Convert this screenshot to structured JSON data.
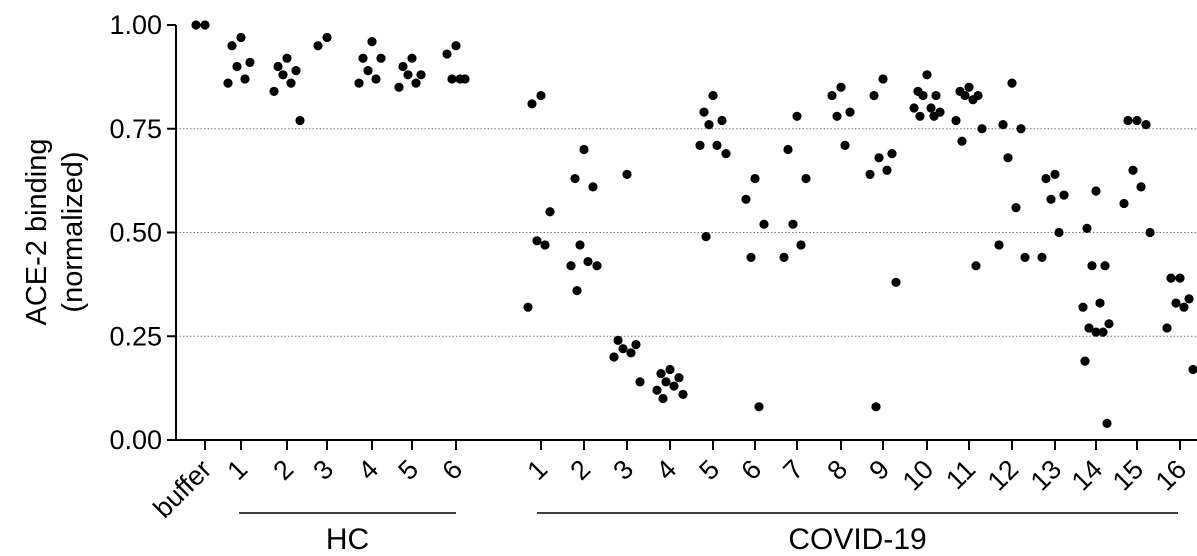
{
  "chart_data": {
    "type": "scatter",
    "ylabel_line1": "ACE-2 binding",
    "ylabel_line2": "(normalized)",
    "ylim": [
      0,
      1
    ],
    "yticks": [
      "0.00",
      "0.25",
      "0.50",
      "0.75",
      "1.00"
    ],
    "ytick_values": [
      0,
      0.25,
      0.5,
      0.75,
      1.0
    ],
    "grid_y_values": [
      0.25,
      0.5,
      0.75
    ],
    "grid": "dotted horizontal at 0.25, 0.50, 0.75",
    "groups": [
      {
        "label": "HC",
        "categories": [
          "1",
          "2",
          "3",
          "4",
          "5",
          "6"
        ]
      },
      {
        "label": "COVID-19",
        "categories": [
          "1",
          "2",
          "3",
          "4",
          "5",
          "6",
          "7",
          "8",
          "9",
          "10",
          "11",
          "12",
          "13",
          "14",
          "15",
          "16"
        ]
      }
    ],
    "categories": [
      "buffer",
      "1",
      "2",
      "3",
      "4",
      "5",
      "6",
      "1",
      "2",
      "3",
      "4",
      "5",
      "6",
      "7",
      "8",
      "9",
      "10",
      "11",
      "12",
      "13",
      "14",
      "15",
      "16"
    ],
    "series": [
      {
        "category": "buffer",
        "values": [
          1.0,
          1.0
        ]
      },
      {
        "category": "1",
        "group": "HC",
        "values": [
          0.97,
          0.95,
          0.91,
          0.9,
          0.87,
          0.86
        ]
      },
      {
        "category": "2",
        "group": "HC",
        "values": [
          0.92,
          0.9,
          0.89,
          0.88,
          0.86,
          0.84,
          0.77
        ]
      },
      {
        "category": "3",
        "group": "HC",
        "values": [
          0.97,
          0.95
        ]
      },
      {
        "category": "4",
        "group": "HC",
        "values": [
          0.96,
          0.92,
          0.92,
          0.89,
          0.87,
          0.86
        ]
      },
      {
        "category": "5",
        "group": "HC",
        "values": [
          0.92,
          0.9,
          0.88,
          0.88,
          0.86,
          0.85
        ]
      },
      {
        "category": "6",
        "group": "HC",
        "values": [
          0.95,
          0.93,
          0.87,
          0.87,
          0.87
        ]
      },
      {
        "category": "1",
        "group": "COVID-19",
        "values": [
          0.83,
          0.81,
          0.55,
          0.48,
          0.47,
          0.32
        ]
      },
      {
        "category": "2",
        "group": "COVID-19",
        "values": [
          0.7,
          0.63,
          0.61,
          0.47,
          0.43,
          0.42,
          0.42,
          0.36
        ]
      },
      {
        "category": "3",
        "group": "COVID-19",
        "values": [
          0.64,
          0.24,
          0.23,
          0.22,
          0.21,
          0.2,
          0.14
        ]
      },
      {
        "category": "4",
        "group": "COVID-19",
        "values": [
          0.17,
          0.16,
          0.15,
          0.14,
          0.13,
          0.12,
          0.11,
          0.1
        ]
      },
      {
        "category": "5",
        "group": "COVID-19",
        "values": [
          0.83,
          0.79,
          0.77,
          0.76,
          0.71,
          0.71,
          0.69,
          0.49
        ]
      },
      {
        "category": "6",
        "group": "COVID-19",
        "values": [
          0.63,
          0.58,
          0.52,
          0.44,
          0.08
        ]
      },
      {
        "category": "7",
        "group": "COVID-19",
        "values": [
          0.78,
          0.7,
          0.63,
          0.52,
          0.47,
          0.44
        ]
      },
      {
        "category": "8",
        "group": "COVID-19",
        "values": [
          0.85,
          0.83,
          0.79,
          0.78,
          0.71
        ]
      },
      {
        "category": "9",
        "group": "COVID-19",
        "values": [
          0.87,
          0.83,
          0.69,
          0.68,
          0.65,
          0.64,
          0.38,
          0.08
        ]
      },
      {
        "category": "10",
        "group": "COVID-19",
        "values": [
          0.88,
          0.84,
          0.83,
          0.83,
          0.8,
          0.8,
          0.79,
          0.78,
          0.78
        ]
      },
      {
        "category": "11",
        "group": "COVID-19",
        "values": [
          0.85,
          0.84,
          0.83,
          0.83,
          0.82,
          0.77,
          0.75,
          0.72,
          0.42
        ]
      },
      {
        "category": "12",
        "group": "COVID-19",
        "values": [
          0.86,
          0.76,
          0.75,
          0.68,
          0.56,
          0.47,
          0.44
        ]
      },
      {
        "category": "13",
        "group": "COVID-19",
        "values": [
          0.64,
          0.63,
          0.59,
          0.58,
          0.5,
          0.44
        ]
      },
      {
        "category": "14",
        "group": "COVID-19",
        "values": [
          0.6,
          0.51,
          0.42,
          0.42,
          0.33,
          0.32,
          0.28,
          0.27,
          0.26,
          0.26,
          0.19,
          0.04
        ]
      },
      {
        "category": "15",
        "group": "COVID-19",
        "values": [
          0.77,
          0.77,
          0.76,
          0.65,
          0.61,
          0.57,
          0.5
        ]
      },
      {
        "category": "16",
        "group": "COVID-19",
        "values": [
          0.39,
          0.39,
          0.34,
          0.33,
          0.32,
          0.27,
          0.17
        ]
      }
    ]
  }
}
